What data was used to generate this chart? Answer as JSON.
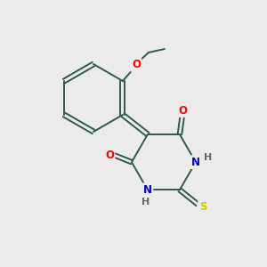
{
  "bg_color": "#ebebeb",
  "bond_color": "#2d5a4a",
  "atom_colors": {
    "O": "#ff0000",
    "N": "#0000cc",
    "S": "#cccc00",
    "H": "#666666",
    "C": "#2d5a4a"
  },
  "figsize": [
    3.0,
    3.0
  ],
  "dpi": 100,
  "lw": 1.4
}
